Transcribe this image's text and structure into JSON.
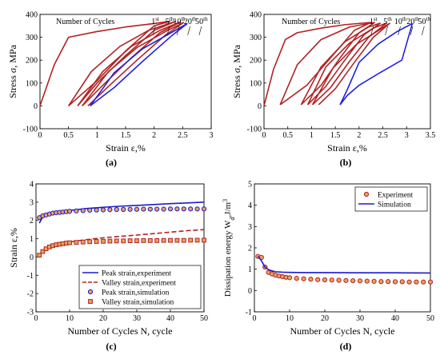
{
  "chart_data": [
    {
      "id": "a",
      "panel_label": "(a)",
      "type": "line",
      "xlabel": "Strain  ε,%",
      "ylabel": "Stress  σ, MPa",
      "xlim": [
        0,
        3
      ],
      "ylim": [
        -100,
        400
      ],
      "xticks": [
        "0",
        "0.5",
        "1",
        "1.5",
        "2",
        "2.5",
        "3"
      ],
      "yticks": [
        "-100",
        "0",
        "100",
        "200",
        "300",
        "400"
      ],
      "annotation": "Number of Cycles",
      "cycle_labels": [
        {
          "n": "1",
          "sup": "st",
          "x": 2.02
        },
        {
          "n": "5",
          "sup": "th",
          "x": 2.27
        },
        {
          "n": "10",
          "sup": "th",
          "x": 2.44
        },
        {
          "n": "20",
          "sup": "th",
          "x": 2.63
        },
        {
          "n": "50",
          "sup": "th",
          "x": 2.83
        }
      ],
      "grid": false,
      "series": [
        {
          "color": "#b22222",
          "x": [
            0.0,
            0.25,
            0.5,
            1.0,
            1.5,
            2.0,
            2.28
          ],
          "y": [
            0,
            180,
            300,
            325,
            345,
            360,
            370
          ]
        },
        {
          "color": "#b22222",
          "x": [
            2.28,
            2.0,
            1.5,
            1.0,
            0.5
          ],
          "y": [
            370,
            350,
            240,
            110,
            0
          ]
        },
        {
          "color": "#b22222",
          "x": [
            0.5,
            0.9,
            1.4,
            1.9,
            2.38
          ],
          "y": [
            0,
            150,
            260,
            330,
            370
          ]
        },
        {
          "color": "#b22222",
          "x": [
            2.38,
            2.0,
            1.5,
            1.0,
            0.66
          ],
          "y": [
            370,
            330,
            220,
            100,
            0
          ]
        },
        {
          "color": "#b22222",
          "x": [
            0.66,
            1.1,
            1.6,
            2.1,
            2.47
          ],
          "y": [
            0,
            150,
            260,
            330,
            368
          ]
        },
        {
          "color": "#b22222",
          "x": [
            2.47,
            2.1,
            1.6,
            1.1,
            0.74
          ],
          "y": [
            368,
            320,
            210,
            90,
            0
          ]
        },
        {
          "color": "#b22222",
          "x": [
            0.74,
            1.2,
            1.7,
            2.2,
            2.52
          ],
          "y": [
            0,
            150,
            255,
            325,
            365
          ]
        },
        {
          "color": "#b22222",
          "x": [
            2.52,
            2.2,
            1.7,
            1.2,
            0.84
          ],
          "y": [
            365,
            310,
            200,
            85,
            0
          ]
        },
        {
          "color": "#2222dd",
          "x": [
            0.88,
            1.3,
            1.8,
            2.3,
            2.58
          ],
          "y": [
            0,
            145,
            250,
            320,
            360
          ]
        },
        {
          "color": "#2222dd",
          "x": [
            2.58,
            2.3,
            1.8,
            1.3,
            0.88
          ],
          "y": [
            360,
            305,
            195,
            80,
            0
          ]
        }
      ]
    },
    {
      "id": "b",
      "panel_label": "(b)",
      "type": "line",
      "xlabel": "Strain  ε,%",
      "ylabel": "Stress  σ, MPa",
      "xlim": [
        0,
        3.5
      ],
      "ylim": [
        -100,
        400
      ],
      "xticks": [
        "0",
        "0.5",
        "1",
        "1.5",
        "2",
        "2.5",
        "3",
        "3.5"
      ],
      "yticks": [
        "-100",
        "0",
        "100",
        "200",
        "300",
        "400"
      ],
      "annotation": "Number of Cycles",
      "cycle_labels": [
        {
          "n": "1",
          "sup": "st",
          "x": 2.3
        },
        {
          "n": "5",
          "sup": "th",
          "x": 2.6
        },
        {
          "n": "10",
          "sup": "th",
          "x": 2.87
        },
        {
          "n": "20",
          "sup": "th",
          "x": 3.13
        },
        {
          "n": "50",
          "sup": "th",
          "x": 3.37
        }
      ],
      "grid": false,
      "series": [
        {
          "color": "#b22222",
          "x": [
            0.0,
            0.2,
            0.45,
            0.7,
            1.2,
            1.7,
            2.25
          ],
          "y": [
            0,
            160,
            290,
            320,
            340,
            355,
            365
          ]
        },
        {
          "color": "#b22222",
          "x": [
            2.25,
            1.9,
            1.4,
            0.9,
            0.34
          ],
          "y": [
            365,
            330,
            210,
            90,
            5
          ]
        },
        {
          "color": "#b22222",
          "x": [
            0.34,
            0.7,
            1.2,
            1.8,
            2.33
          ],
          "y": [
            5,
            180,
            290,
            345,
            365
          ]
        },
        {
          "color": "#b22222",
          "x": [
            2.33,
            2.0,
            1.6,
            1.2,
            0.78
          ],
          "y": [
            365,
            320,
            210,
            90,
            5
          ]
        },
        {
          "color": "#b22222",
          "x": [
            0.78,
            1.2,
            1.7,
            2.2,
            2.45
          ],
          "y": [
            5,
            170,
            280,
            345,
            362
          ]
        },
        {
          "color": "#b22222",
          "x": [
            2.45,
            2.1,
            1.7,
            1.3,
            0.92
          ],
          "y": [
            362,
            310,
            200,
            85,
            5
          ]
        },
        {
          "color": "#b22222",
          "x": [
            0.92,
            1.3,
            1.8,
            2.3,
            2.58
          ],
          "y": [
            5,
            170,
            275,
            340,
            362
          ]
        },
        {
          "color": "#b22222",
          "x": [
            2.58,
            2.2,
            1.8,
            1.4,
            1.02
          ],
          "y": [
            362,
            300,
            195,
            80,
            5
          ]
        },
        {
          "color": "#b22222",
          "x": [
            1.02,
            1.45,
            1.95,
            2.45,
            2.65
          ],
          "y": [
            5,
            165,
            270,
            335,
            362
          ]
        },
        {
          "color": "#b22222",
          "x": [
            2.65,
            2.3,
            1.9,
            1.5,
            1.15
          ],
          "y": [
            362,
            300,
            190,
            75,
            5
          ]
        },
        {
          "color": "#2222dd",
          "x": [
            1.6,
            1.75,
            2.0,
            2.4,
            2.8,
            3.12
          ],
          "y": [
            5,
            70,
            190,
            270,
            325,
            360
          ]
        },
        {
          "color": "#2222dd",
          "x": [
            3.12,
            2.9,
            2.4,
            2.0,
            1.75,
            1.6
          ],
          "y": [
            360,
            200,
            140,
            90,
            45,
            5
          ]
        }
      ]
    },
    {
      "id": "c",
      "panel_label": "(c)",
      "type": "line",
      "xlabel": "Number of Cycles  N, cycle",
      "ylabel": "Strain  ε,%",
      "xlim": [
        0,
        50
      ],
      "ylim": [
        -3,
        4
      ],
      "xticks": [
        "0",
        "10",
        "20",
        "30",
        "40",
        "50"
      ],
      "yticks": [
        "-3",
        "-2",
        "-1",
        "0",
        "1",
        "2",
        "3",
        "4"
      ],
      "grid": false,
      "legend_position": "bottom-right",
      "series": [
        {
          "name": "Peak strain,experiment",
          "kind": "solid",
          "color": "#1a1acc",
          "x": [
            1,
            2,
            3,
            5,
            7,
            10,
            15,
            20,
            25,
            30,
            35,
            40,
            45,
            50
          ],
          "y": [
            1.85,
            2.2,
            2.35,
            2.45,
            2.5,
            2.55,
            2.65,
            2.72,
            2.78,
            2.82,
            2.87,
            2.92,
            2.96,
            3.0
          ]
        },
        {
          "name": "Valley strain,experiment",
          "kind": "dashed",
          "color": "#b22222",
          "x": [
            1,
            2,
            3,
            5,
            7,
            10,
            15,
            20,
            25,
            30,
            35,
            40,
            45,
            50
          ],
          "y": [
            0.1,
            0.35,
            0.5,
            0.62,
            0.72,
            0.82,
            0.95,
            1.05,
            1.13,
            1.2,
            1.28,
            1.36,
            1.44,
            1.5
          ]
        },
        {
          "name": "Peak strain,simulation",
          "kind": "circles",
          "color": "#1a1acc",
          "x": [
            1,
            2,
            3,
            4,
            5,
            6,
            7,
            8,
            9,
            10,
            12,
            14,
            16,
            18,
            20,
            22,
            24,
            26,
            28,
            30,
            32,
            34,
            36,
            38,
            40,
            42,
            44,
            46,
            48,
            50
          ],
          "y": [
            2.15,
            2.25,
            2.3,
            2.35,
            2.4,
            2.42,
            2.44,
            2.46,
            2.48,
            2.5,
            2.52,
            2.54,
            2.56,
            2.57,
            2.58,
            2.59,
            2.6,
            2.6,
            2.61,
            2.61,
            2.62,
            2.62,
            2.62,
            2.62,
            2.63,
            2.63,
            2.63,
            2.63,
            2.63,
            2.63
          ]
        },
        {
          "name": "Valley strain,simulation",
          "kind": "squares",
          "color": "#b22222",
          "x": [
            1,
            2,
            3,
            4,
            5,
            6,
            7,
            8,
            9,
            10,
            12,
            14,
            16,
            18,
            20,
            22,
            24,
            26,
            28,
            30,
            32,
            34,
            36,
            38,
            40,
            42,
            44,
            46,
            48,
            50
          ],
          "y": [
            0.1,
            0.3,
            0.45,
            0.55,
            0.62,
            0.67,
            0.7,
            0.73,
            0.76,
            0.78,
            0.8,
            0.82,
            0.84,
            0.85,
            0.86,
            0.87,
            0.88,
            0.88,
            0.89,
            0.89,
            0.9,
            0.9,
            0.9,
            0.91,
            0.91,
            0.91,
            0.91,
            0.92,
            0.92,
            0.92
          ]
        }
      ]
    },
    {
      "id": "d",
      "panel_label": "(d)",
      "type": "line",
      "xlabel": "Number of Cycles  N, cycle",
      "ylabel_main": "Dissipation energy  W",
      "ylabel_sub": "d",
      "ylabel_unit": ",J/m",
      "ylabel_sup": "3",
      "xlim": [
        0,
        50
      ],
      "ylim": [
        -1,
        5
      ],
      "xticks": [
        "0",
        "10",
        "20",
        "30",
        "40",
        "50"
      ],
      "yticks": [
        "-1",
        "0",
        "1",
        "2",
        "3",
        "4",
        "5"
      ],
      "grid": false,
      "legend_position": "top-right",
      "series": [
        {
          "name": "Experiment",
          "kind": "circles",
          "color": "#b22222",
          "x": [
            1,
            2,
            3,
            4,
            5,
            6,
            7,
            8,
            9,
            10,
            12,
            14,
            16,
            18,
            20,
            22,
            24,
            26,
            28,
            30,
            32,
            34,
            36,
            38,
            40,
            42,
            44,
            46,
            48,
            50
          ],
          "y": [
            1.6,
            1.55,
            1.1,
            0.85,
            0.78,
            0.72,
            0.68,
            0.65,
            0.62,
            0.6,
            0.57,
            0.55,
            0.53,
            0.51,
            0.5,
            0.49,
            0.48,
            0.47,
            0.46,
            0.45,
            0.44,
            0.43,
            0.42,
            0.42,
            0.41,
            0.41,
            0.4,
            0.4,
            0.4,
            0.4
          ]
        },
        {
          "name": "Simulation",
          "kind": "solid",
          "color": "#1a1acc",
          "x": [
            1,
            2,
            3,
            4,
            5,
            6,
            8,
            10,
            15,
            20,
            30,
            40,
            50
          ],
          "y": [
            1.6,
            1.4,
            1.1,
            0.98,
            0.92,
            0.88,
            0.86,
            0.85,
            0.84,
            0.84,
            0.83,
            0.83,
            0.82
          ]
        }
      ]
    }
  ]
}
